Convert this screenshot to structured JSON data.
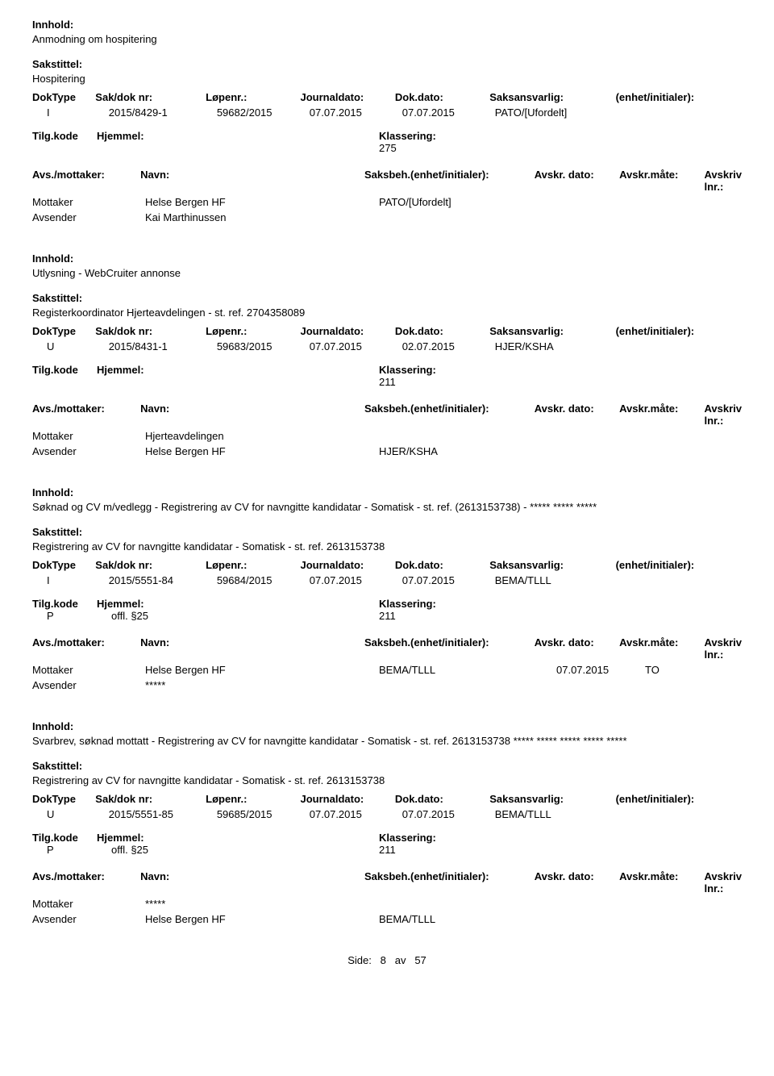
{
  "labels": {
    "innhold": "Innhold:",
    "sakstittel": "Sakstittel:",
    "doktype": "DokType",
    "sakdok": "Sak/dok nr:",
    "lopenr": "Løpenr.:",
    "jdato": "Journaldato:",
    "ddato": "Dok.dato:",
    "saksansv": "Saksansvarlig:",
    "enhet": "(enhet/initialer):",
    "tilgkode": "Tilg.kode",
    "hjemmel": "Hjemmel:",
    "klassering": "Klassering:",
    "avsmottaker": "Avs./mottaker:",
    "navn": "Navn:",
    "saksbeh": "Saksbeh.(enhet/initialer):",
    "avskrdato": "Avskr. dato:",
    "avskrmate": "Avskr.måte:",
    "avskrivlnr": "Avskriv lnr.:",
    "mottaker": "Mottaker",
    "avsender": "Avsender"
  },
  "records": [
    {
      "innhold": "Anmodning om hospitering",
      "sakstittel": "Hospitering",
      "doktype": "I",
      "sakdok": "2015/8429-1",
      "lopenr": "59682/2015",
      "jdato": "07.07.2015",
      "ddato": "07.07.2015",
      "saksansv": "PATO/[Ufordelt]",
      "enhet": "",
      "tilgkode": "",
      "hjemmel": "",
      "klassering": "275",
      "parties": [
        {
          "role": "Mottaker",
          "navn": "Helse Bergen HF",
          "saksbeh": "PATO/[Ufordelt]",
          "avskrdato": "",
          "avskrmate": "",
          "avskrivlnr": ""
        },
        {
          "role": "Avsender",
          "navn": "Kai Marthinussen",
          "saksbeh": "",
          "avskrdato": "",
          "avskrmate": "",
          "avskrivlnr": ""
        }
      ]
    },
    {
      "innhold": "Utlysning - WebCruiter annonse",
      "sakstittel": "Registerkoordinator Hjerteavdelingen - st. ref. 2704358089",
      "doktype": "U",
      "sakdok": "2015/8431-1",
      "lopenr": "59683/2015",
      "jdato": "07.07.2015",
      "ddato": "02.07.2015",
      "saksansv": "HJER/KSHA",
      "enhet": "",
      "tilgkode": "",
      "hjemmel": "",
      "klassering": "211",
      "parties": [
        {
          "role": "Mottaker",
          "navn": "Hjerteavdelingen",
          "saksbeh": "",
          "avskrdato": "",
          "avskrmate": "",
          "avskrivlnr": ""
        },
        {
          "role": "Avsender",
          "navn": "Helse Bergen HF",
          "saksbeh": "HJER/KSHA",
          "avskrdato": "",
          "avskrmate": "",
          "avskrivlnr": ""
        }
      ]
    },
    {
      "innhold": "Søknad og CV m/vedlegg - Registrering av CV for navngitte kandidatar - Somatisk - st. ref. (2613153738) - ***** ***** *****",
      "sakstittel": "Registrering av CV for navngitte kandidatar - Somatisk  - st. ref. 2613153738",
      "doktype": "I",
      "sakdok": "2015/5551-84",
      "lopenr": "59684/2015",
      "jdato": "07.07.2015",
      "ddato": "07.07.2015",
      "saksansv": "BEMA/TLLL",
      "enhet": "",
      "tilgkode": "P",
      "hjemmel": "offl. §25",
      "klassering": "211",
      "parties": [
        {
          "role": "Mottaker",
          "navn": "Helse Bergen HF",
          "saksbeh": "BEMA/TLLL",
          "avskrdato": "07.07.2015",
          "avskrmate": "TO",
          "avskrivlnr": ""
        },
        {
          "role": "Avsender",
          "navn": "*****",
          "saksbeh": "",
          "avskrdato": "",
          "avskrmate": "",
          "avskrivlnr": ""
        }
      ]
    },
    {
      "innhold": "Svarbrev, søknad mottatt - Registrering av CV for navngitte kandidatar - Somatisk  - st. ref. 2613153738 ***** ***** ***** ***** *****",
      "sakstittel": "Registrering av CV for navngitte kandidatar - Somatisk  - st. ref. 2613153738",
      "doktype": "U",
      "sakdok": "2015/5551-85",
      "lopenr": "59685/2015",
      "jdato": "07.07.2015",
      "ddato": "07.07.2015",
      "saksansv": "BEMA/TLLL",
      "enhet": "",
      "tilgkode": "P",
      "hjemmel": "offl. §25",
      "klassering": "211",
      "parties": [
        {
          "role": "Mottaker",
          "navn": "*****",
          "saksbeh": "",
          "avskrdato": "",
          "avskrmate": "",
          "avskrivlnr": ""
        },
        {
          "role": "Avsender",
          "navn": "Helse Bergen HF",
          "saksbeh": "BEMA/TLLL",
          "avskrdato": "",
          "avskrmate": "",
          "avskrivlnr": ""
        }
      ]
    }
  ],
  "footer": {
    "side": "Side:",
    "page": "8",
    "av": "av",
    "total": "57"
  }
}
